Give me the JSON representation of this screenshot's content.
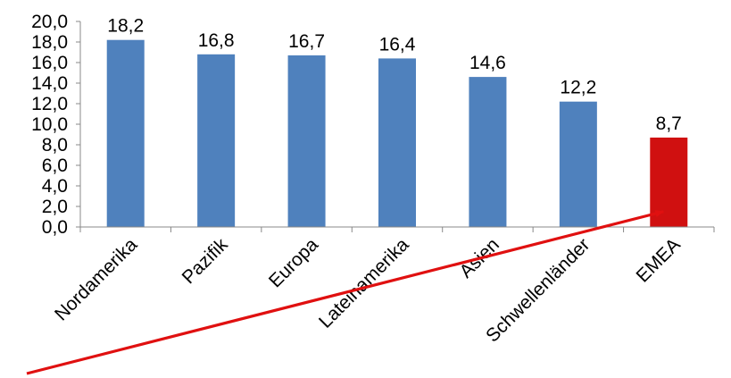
{
  "chart_data": {
    "type": "bar",
    "categories": [
      "Nordamerika",
      "Pazifik",
      "Europa",
      "Lateinamerika",
      "Asien",
      "Schwellenländer",
      "EMEA"
    ],
    "values": [
      18.2,
      16.8,
      16.7,
      16.4,
      14.6,
      12.2,
      8.7
    ],
    "data_labels": [
      "18,2",
      "16,8",
      "16,7",
      "16,4",
      "14,6",
      "12,2",
      "8,7"
    ],
    "ylim": [
      0,
      20
    ],
    "yticks": [
      0,
      2,
      4,
      6,
      8,
      10,
      12,
      14,
      16,
      18,
      20
    ],
    "ytick_labels": [
      "0,0",
      "2,0",
      "4,0",
      "6,0",
      "8,0",
      "10,0",
      "12,0",
      "14,0",
      "16,0",
      "18,0",
      "20,0"
    ],
    "grid": false,
    "legend": "none",
    "colors": {
      "bar": "#4f81bd",
      "highlight_bar": "#d01010",
      "arrow": "#e01010",
      "axis": "#888888"
    },
    "highlight_category": "EMEA",
    "annotation": {
      "type": "arrow",
      "from_category": "Lateinamerika",
      "to_category": "EMEA"
    }
  }
}
